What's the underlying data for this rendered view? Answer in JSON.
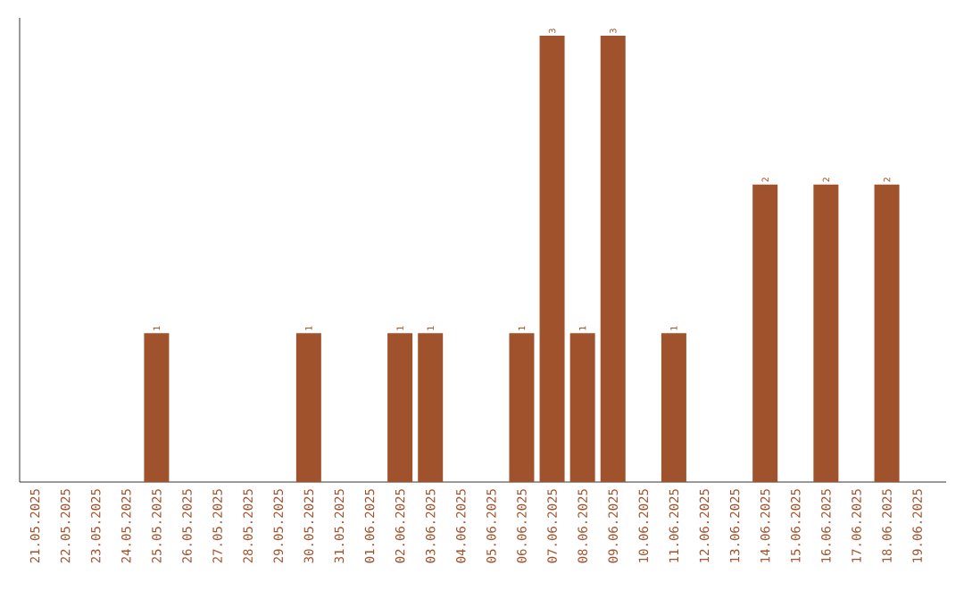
{
  "chart_data": {
    "type": "bar",
    "categories": [
      "21.05.2025",
      "22.05.2025",
      "23.05.2025",
      "24.05.2025",
      "25.05.2025",
      "26.05.2025",
      "27.05.2025",
      "28.05.2025",
      "29.05.2025",
      "30.05.2025",
      "31.05.2025",
      "01.06.2025",
      "02.06.2025",
      "03.06.2025",
      "04.06.2025",
      "05.06.2025",
      "06.06.2025",
      "07.06.2025",
      "08.06.2025",
      "09.06.2025",
      "10.06.2025",
      "11.06.2025",
      "12.06.2025",
      "13.06.2025",
      "14.06.2025",
      "15.06.2025",
      "16.06.2025",
      "17.06.2025",
      "18.06.2025",
      "19.06.2025"
    ],
    "values": [
      0,
      0,
      0,
      0,
      1,
      0,
      0,
      0,
      0,
      1,
      0,
      0,
      1,
      1,
      0,
      0,
      1,
      3,
      1,
      3,
      0,
      1,
      0,
      0,
      2,
      0,
      2,
      0,
      2,
      0
    ],
    "value_labels": [
      null,
      null,
      null,
      null,
      "1",
      null,
      null,
      null,
      null,
      "1",
      null,
      null,
      "1",
      "1",
      null,
      null,
      "1",
      "3",
      "1",
      "3",
      null,
      "1",
      null,
      null,
      "2",
      null,
      "2",
      null,
      "2",
      null
    ],
    "color": "#a0522d"
  }
}
